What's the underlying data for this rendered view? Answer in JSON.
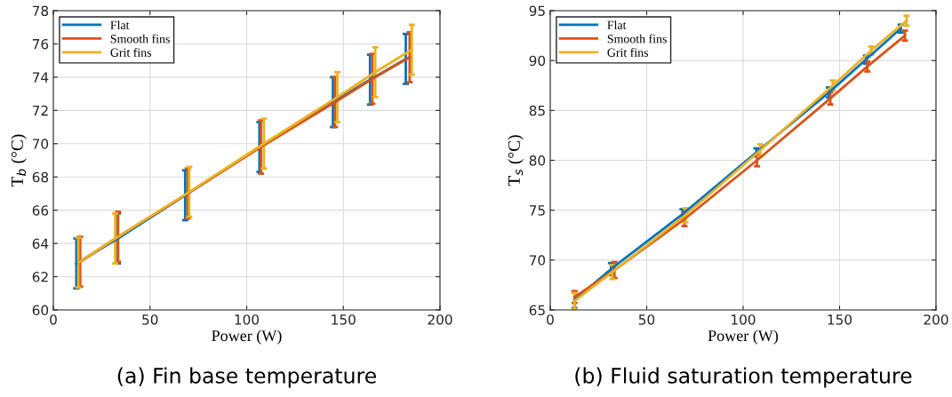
{
  "chart_data": [
    {
      "type": "line",
      "xlabel": "Power (W)",
      "ylabel": "T$_{b}$ (°C)",
      "annotations": [
        "(a) Fin base temperature"
      ],
      "xlim": [
        0,
        200
      ],
      "xticks": [
        0,
        50,
        100,
        150,
        200
      ],
      "ylim": [
        60,
        78
      ],
      "yticks": [
        60,
        62,
        64,
        66,
        68,
        70,
        72,
        74,
        76,
        78
      ],
      "grid": true,
      "legend": "top left",
      "marker": "none",
      "line_style": "solid",
      "series": [
        {
          "name": "Flat",
          "color": "#0072bd",
          "x": [
            11.9,
            33.4,
            68.2,
            106.6,
            144.6,
            163.8,
            182.3
          ],
          "values": [
            62.8,
            64.3,
            66.9,
            69.8,
            72.5,
            73.85,
            75.1
          ],
          "errors": [
            1.5,
            1.5,
            1.5,
            1.5,
            1.5,
            1.5,
            1.5
          ]
        },
        {
          "name": "Smooth fins",
          "color": "#d95319",
          "x": [
            13.9,
            33.5,
            69.5,
            107.4,
            145.7,
            165.0,
            184.3
          ],
          "values": [
            62.9,
            64.4,
            67.0,
            69.8,
            72.5,
            73.9,
            75.2
          ],
          "errors": [
            1.5,
            1.5,
            1.5,
            1.6,
            1.5,
            1.5,
            1.5
          ]
        },
        {
          "name": "Grit fins",
          "color": "#edb120",
          "x": [
            12.9,
            32.0,
            70.3,
            108.9,
            146.9,
            166.5,
            185.4
          ],
          "values": [
            62.85,
            64.3,
            67.1,
            70.0,
            72.8,
            74.3,
            75.65
          ],
          "errors": [
            1.5,
            1.5,
            1.5,
            1.5,
            1.5,
            1.5,
            1.5
          ]
        }
      ]
    },
    {
      "type": "line",
      "xlabel": "Power (W)",
      "ylabel": "T$_{s}$ (°C)",
      "annotations": [
        "(b) Fluid saturation temperature"
      ],
      "xlim": [
        0,
        200
      ],
      "xticks": [
        0,
        50,
        100,
        150,
        200
      ],
      "ylim": [
        65,
        95
      ],
      "yticks": [
        65,
        70,
        75,
        80,
        85,
        90,
        95
      ],
      "grid": true,
      "legend": "top left",
      "marker": "none",
      "line_style": "solid",
      "series": [
        {
          "name": "Flat",
          "color": "#0072bd",
          "x": [
            12.6,
            31.5,
            68.6,
            106.9,
            144.5,
            163.7,
            181.7
          ],
          "values": [
            66.0,
            69.1,
            74.6,
            80.8,
            86.8,
            90.1,
            93.2
          ],
          "errors": [
            0.8,
            0.6,
            0.5,
            0.4,
            0.5,
            0.4,
            0.4
          ]
        },
        {
          "name": "Smooth fins",
          "color": "#d95319",
          "x": [
            12.6,
            33.3,
            69.6,
            107.2,
            145.2,
            164.4,
            183.9
          ],
          "values": [
            66.3,
            69.0,
            74.1,
            80.0,
            86.2,
            89.4,
            92.5
          ],
          "errors": [
            0.6,
            0.8,
            0.7,
            0.6,
            0.6,
            0.5,
            0.5
          ]
        },
        {
          "name": "Grit fins",
          "color": "#edb120",
          "x": [
            12.6,
            32.2,
            70.1,
            108.9,
            146.5,
            166.4,
            184.7
          ],
          "values": [
            65.9,
            68.8,
            74.5,
            81.0,
            87.5,
            91.0,
            94.0
          ],
          "errors": [
            0.8,
            0.7,
            0.7,
            0.6,
            0.5,
            0.4,
            0.5
          ]
        }
      ]
    }
  ]
}
